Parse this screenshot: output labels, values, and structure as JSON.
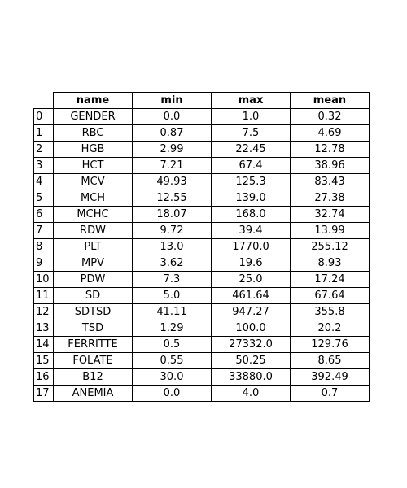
{
  "chart_data": {
    "type": "table",
    "columns": [
      "name",
      "min",
      "max",
      "mean"
    ],
    "rows": [
      {
        "index": "0",
        "name": "GENDER",
        "min": "0.0",
        "max": "1.0",
        "mean": "0.32"
      },
      {
        "index": "1",
        "name": "RBC",
        "min": "0.87",
        "max": "7.5",
        "mean": "4.69"
      },
      {
        "index": "2",
        "name": "HGB",
        "min": "2.99",
        "max": "22.45",
        "mean": "12.78"
      },
      {
        "index": "3",
        "name": "HCT",
        "min": "7.21",
        "max": "67.4",
        "mean": "38.96"
      },
      {
        "index": "4",
        "name": "MCV",
        "min": "49.93",
        "max": "125.3",
        "mean": "83.43"
      },
      {
        "index": "5",
        "name": "MCH",
        "min": "12.55",
        "max": "139.0",
        "mean": "27.38"
      },
      {
        "index": "6",
        "name": "MCHC",
        "min": "18.07",
        "max": "168.0",
        "mean": "32.74"
      },
      {
        "index": "7",
        "name": "RDW",
        "min": "9.72",
        "max": "39.4",
        "mean": "13.99"
      },
      {
        "index": "8",
        "name": "PLT",
        "min": "13.0",
        "max": "1770.0",
        "mean": "255.12"
      },
      {
        "index": "9",
        "name": "MPV",
        "min": "3.62",
        "max": "19.6",
        "mean": "8.93"
      },
      {
        "index": "10",
        "name": "PDW",
        "min": "7.3",
        "max": "25.0",
        "mean": "17.24"
      },
      {
        "index": "11",
        "name": "SD",
        "min": "5.0",
        "max": "461.64",
        "mean": "67.64"
      },
      {
        "index": "12",
        "name": "SDTSD",
        "min": "41.11",
        "max": "947.27",
        "mean": "355.8"
      },
      {
        "index": "13",
        "name": "TSD",
        "min": "1.29",
        "max": "100.0",
        "mean": "20.2"
      },
      {
        "index": "14",
        "name": "FERRITTE",
        "min": "0.5",
        "max": "27332.0",
        "mean": "129.76"
      },
      {
        "index": "15",
        "name": "FOLATE",
        "min": "0.55",
        "max": "50.25",
        "mean": "8.65"
      },
      {
        "index": "16",
        "name": "B12",
        "min": "30.0",
        "max": "33880.0",
        "mean": "392.49"
      },
      {
        "index": "17",
        "name": "ANEMIA",
        "min": "0.0",
        "max": "4.0",
        "mean": "0.7"
      }
    ]
  }
}
